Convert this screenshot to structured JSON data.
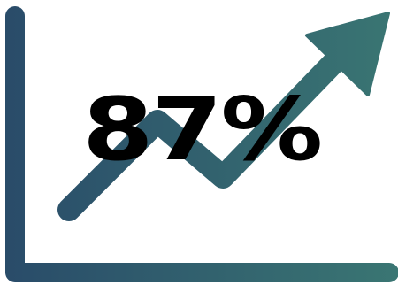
{
  "stat": {
    "value": "87%"
  },
  "colors": {
    "gradient_start": "#294b69",
    "gradient_end": "#3a7673",
    "text": "#000000",
    "background": "#ffffff"
  },
  "icons": {
    "axes": "chart-axes-icon",
    "trend": "upward-trend-arrow-icon"
  }
}
